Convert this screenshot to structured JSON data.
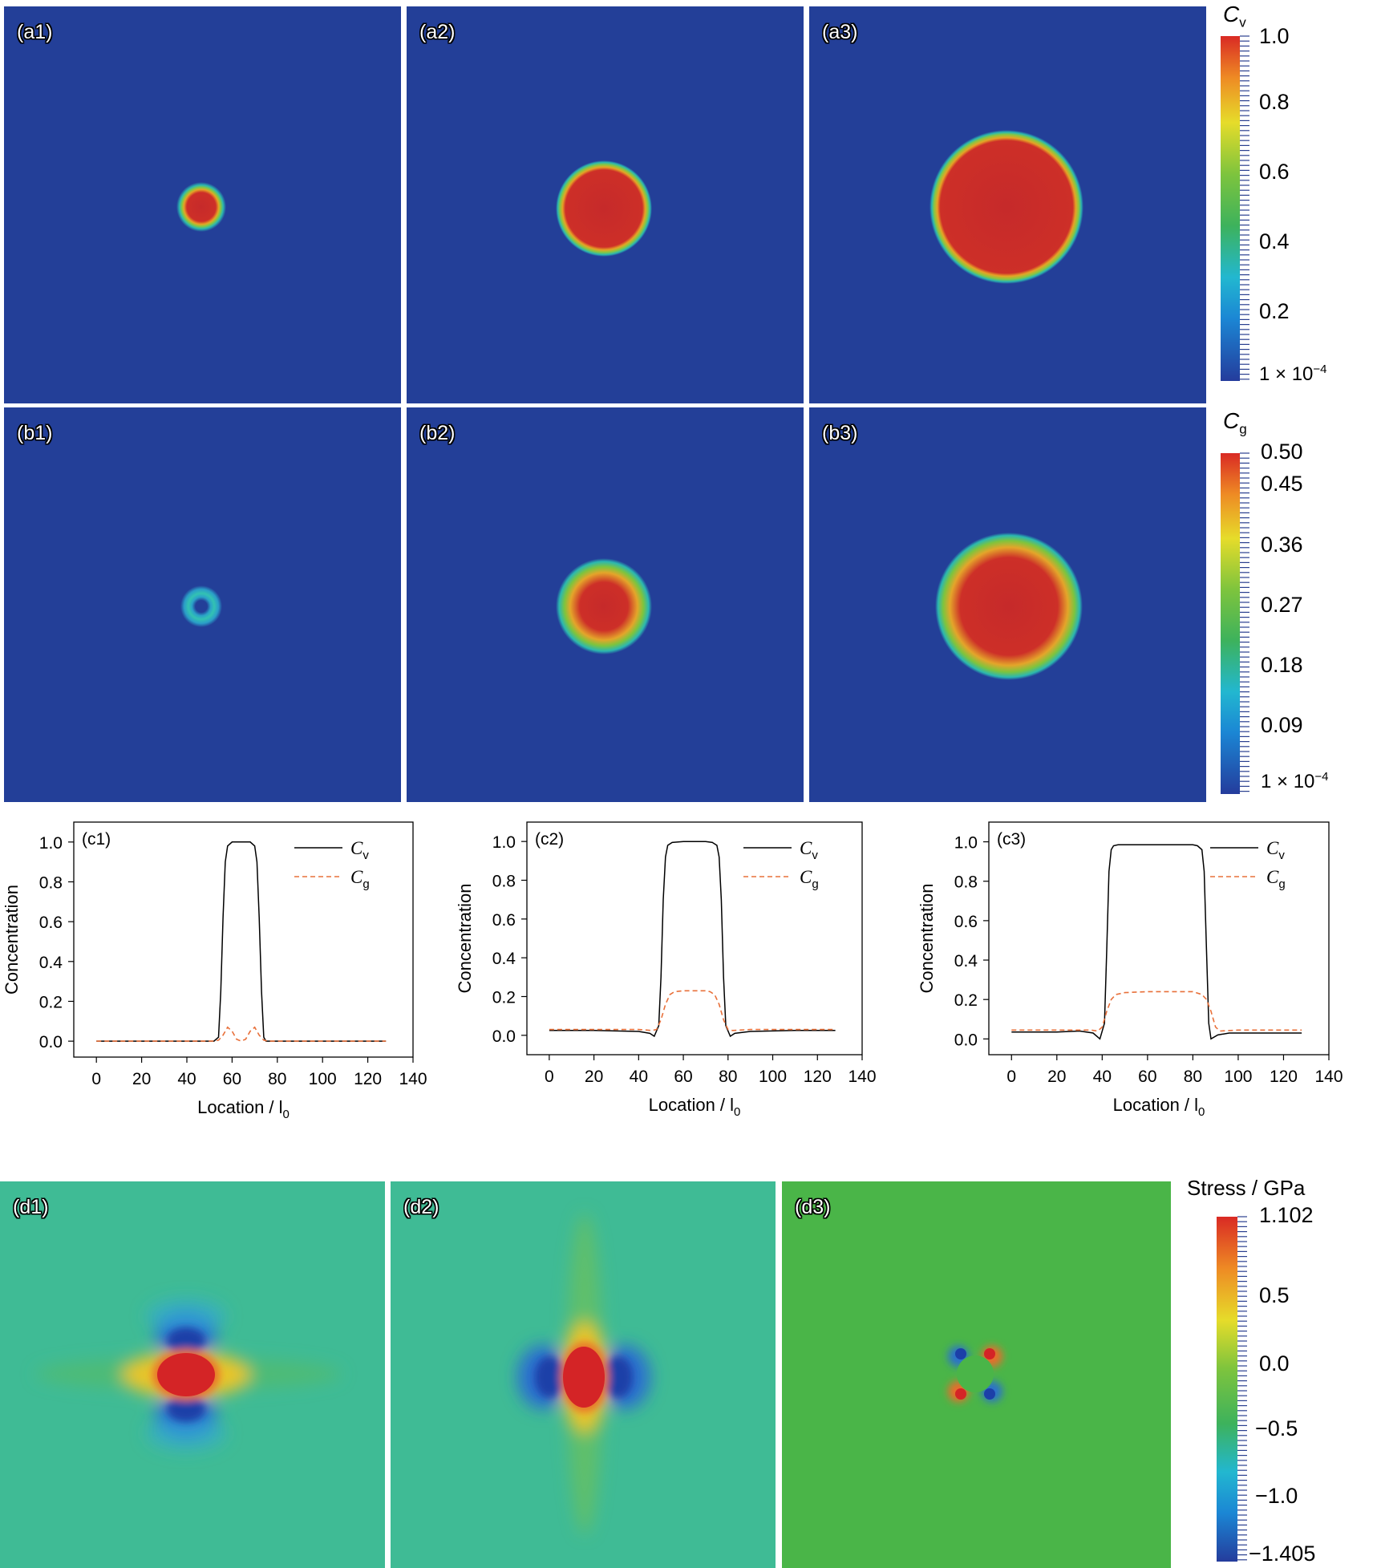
{
  "row_a": {
    "labels": [
      "(a1)",
      "(a2)",
      "(a3)"
    ],
    "colorbar": {
      "symbol": "C",
      "subscript": "v",
      "ticks": [
        "1.0",
        "0.8",
        "0.6",
        "0.4",
        "0.2",
        "1 × 10",
        "−4"
      ]
    }
  },
  "row_b": {
    "labels": [
      "(b1)",
      "(b2)",
      "(b3)"
    ],
    "colorbar": {
      "symbol": "C",
      "subscript": "g",
      "ticks": [
        "0.50",
        "0.45",
        "0.36",
        "0.27",
        "0.18",
        "0.09",
        "1 × 10",
        "−4"
      ]
    }
  },
  "row_d": {
    "labels": [
      "(d1)",
      "(d2)",
      "(d3)"
    ],
    "colorbar": {
      "title": "Stress / GPa",
      "ticks": [
        "1.102",
        "0.5",
        "0.0",
        "−0.5",
        "−1.0",
        "−1.405"
      ]
    }
  },
  "chart_data": [
    {
      "type": "line",
      "label": "(c1)",
      "xlabel": "Location / l",
      "xlabel_sub": "0",
      "ylabel": "Concentration",
      "xlim": [
        -10,
        140
      ],
      "ylim": [
        -0.08,
        1.1
      ],
      "xticks": [
        0,
        20,
        40,
        60,
        80,
        100,
        120,
        140
      ],
      "yticks": [
        0.0,
        0.2,
        0.4,
        0.6,
        0.8,
        1.0
      ],
      "legend": "top-right",
      "series": [
        {
          "name": "C",
          "sub": "v",
          "style": "solid",
          "color": "#000000",
          "x": [
            0,
            20,
            40,
            52,
            54,
            55,
            56,
            57,
            58,
            60,
            64,
            68,
            70,
            71,
            72,
            73,
            74,
            75,
            80,
            100,
            128
          ],
          "y": [
            0,
            0,
            0,
            0.0,
            0.02,
            0.25,
            0.62,
            0.9,
            0.98,
            1.0,
            1.0,
            1.0,
            0.98,
            0.9,
            0.62,
            0.25,
            0.02,
            0.0,
            0,
            0,
            0
          ]
        },
        {
          "name": "C",
          "sub": "g",
          "style": "dashed",
          "color": "#e8703a",
          "x": [
            0,
            40,
            52,
            54,
            56,
            58,
            60,
            62,
            64,
            66,
            68,
            70,
            72,
            74,
            76,
            80,
            100,
            128
          ],
          "y": [
            0,
            0,
            0,
            0.005,
            0.03,
            0.07,
            0.05,
            0.01,
            0.0,
            0.01,
            0.05,
            0.07,
            0.03,
            0.005,
            0,
            0,
            0,
            0
          ]
        }
      ]
    },
    {
      "type": "line",
      "label": "(c2)",
      "xlabel": "Location / l",
      "xlabel_sub": "0",
      "ylabel": "Concentration",
      "xlim": [
        -10,
        140
      ],
      "ylim": [
        -0.1,
        1.1
      ],
      "xticks": [
        0,
        20,
        40,
        60,
        80,
        100,
        120,
        140
      ],
      "yticks": [
        0.0,
        0.2,
        0.4,
        0.6,
        0.8,
        1.0
      ],
      "legend": "top-right",
      "series": [
        {
          "name": "C",
          "sub": "v",
          "style": "solid",
          "color": "#000000",
          "x": [
            0,
            20,
            40,
            45,
            47,
            49,
            50,
            51,
            52,
            53,
            55,
            60,
            70,
            73,
            75,
            76,
            77,
            78,
            79,
            81,
            83,
            90,
            110,
            128
          ],
          "y": [
            0.025,
            0.025,
            0.02,
            0.01,
            -0.005,
            0.05,
            0.3,
            0.7,
            0.92,
            0.98,
            0.995,
            1.0,
            1.0,
            0.995,
            0.98,
            0.92,
            0.7,
            0.3,
            0.05,
            -0.005,
            0.01,
            0.02,
            0.025,
            0.025
          ]
        },
        {
          "name": "C",
          "sub": "g",
          "style": "dashed",
          "color": "#e8703a",
          "x": [
            0,
            20,
            40,
            46,
            48,
            50,
            52,
            54,
            56,
            60,
            70,
            72,
            74,
            76,
            78,
            80,
            82,
            90,
            110,
            128
          ],
          "y": [
            0.03,
            0.03,
            0.03,
            0.025,
            0.03,
            0.08,
            0.16,
            0.21,
            0.225,
            0.23,
            0.23,
            0.225,
            0.21,
            0.16,
            0.08,
            0.03,
            0.025,
            0.03,
            0.03,
            0.03
          ]
        }
      ]
    },
    {
      "type": "line",
      "label": "(c3)",
      "xlabel": "Location / l",
      "xlabel_sub": "0",
      "ylabel": "Concentration",
      "xlim": [
        -10,
        140
      ],
      "ylim": [
        -0.08,
        1.1
      ],
      "xticks": [
        0,
        20,
        40,
        60,
        80,
        100,
        120,
        140
      ],
      "yticks": [
        0.0,
        0.2,
        0.4,
        0.6,
        0.8,
        1.0
      ],
      "legend": "top-right",
      "series": [
        {
          "name": "C",
          "sub": "v",
          "style": "solid",
          "color": "#000000",
          "x": [
            0,
            20,
            30,
            36,
            39,
            41,
            42,
            43,
            44,
            45,
            47,
            55,
            80,
            82,
            84,
            85,
            86,
            87,
            88,
            91,
            96,
            110,
            128
          ],
          "y": [
            0.035,
            0.035,
            0.04,
            0.03,
            0.0,
            0.08,
            0.45,
            0.85,
            0.96,
            0.98,
            0.985,
            0.985,
            0.985,
            0.98,
            0.96,
            0.85,
            0.45,
            0.08,
            0.0,
            0.02,
            0.03,
            0.03,
            0.03
          ]
        },
        {
          "name": "C",
          "sub": "g",
          "style": "dashed",
          "color": "#e8703a",
          "x": [
            0,
            20,
            35,
            38,
            40,
            42,
            44,
            46,
            50,
            60,
            80,
            84,
            86,
            88,
            90,
            92,
            100,
            128
          ],
          "y": [
            0.045,
            0.045,
            0.045,
            0.04,
            0.06,
            0.14,
            0.2,
            0.225,
            0.235,
            0.24,
            0.24,
            0.225,
            0.2,
            0.14,
            0.06,
            0.04,
            0.045,
            0.045
          ]
        }
      ]
    }
  ]
}
